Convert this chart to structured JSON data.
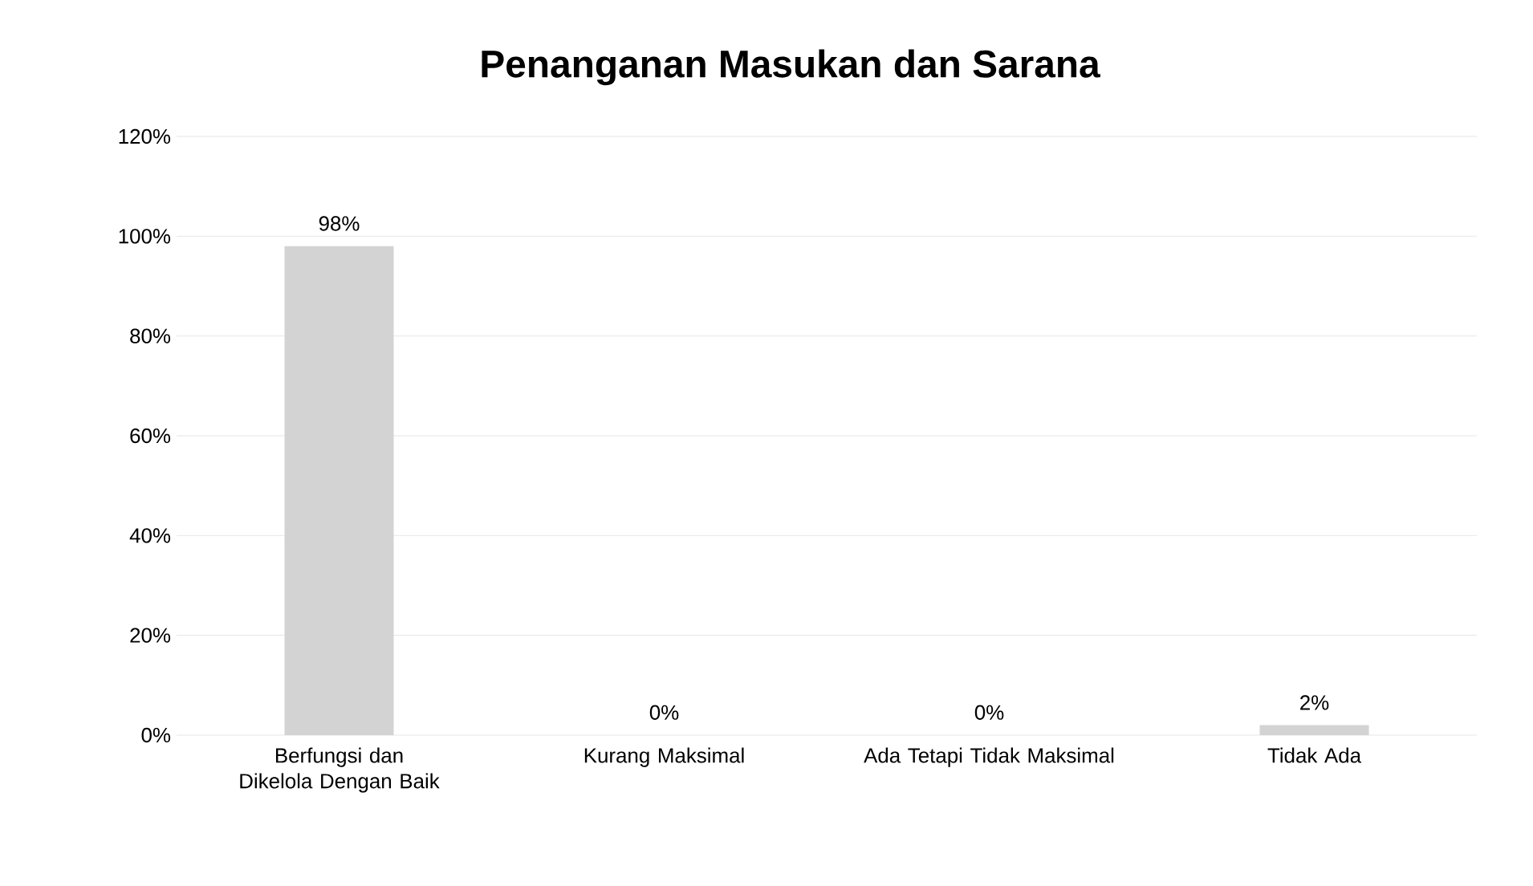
{
  "chart_data": {
    "type": "bar",
    "title": "Penanganan Masukan dan Sarana",
    "categories": [
      "Berfungsi dan Dikelola Dengan Baik",
      "Kurang Maksimal",
      "Ada Tetapi Tidak Maksimal",
      "Tidak Ada"
    ],
    "values": [
      98,
      0,
      0,
      2
    ],
    "value_labels": [
      "98%",
      "0%",
      "0%",
      "2%"
    ],
    "color": "#d3d3d3",
    "ylim": [
      0,
      120
    ],
    "yticks": [
      {
        "value": 0,
        "label": "0%"
      },
      {
        "value": 20,
        "label": "20%"
      },
      {
        "value": 40,
        "label": "40%"
      },
      {
        "value": 60,
        "label": "60%"
      },
      {
        "value": 80,
        "label": "80%"
      },
      {
        "value": 100,
        "label": "100%"
      },
      {
        "value": 120,
        "label": "120%"
      }
    ],
    "grid": "y"
  }
}
